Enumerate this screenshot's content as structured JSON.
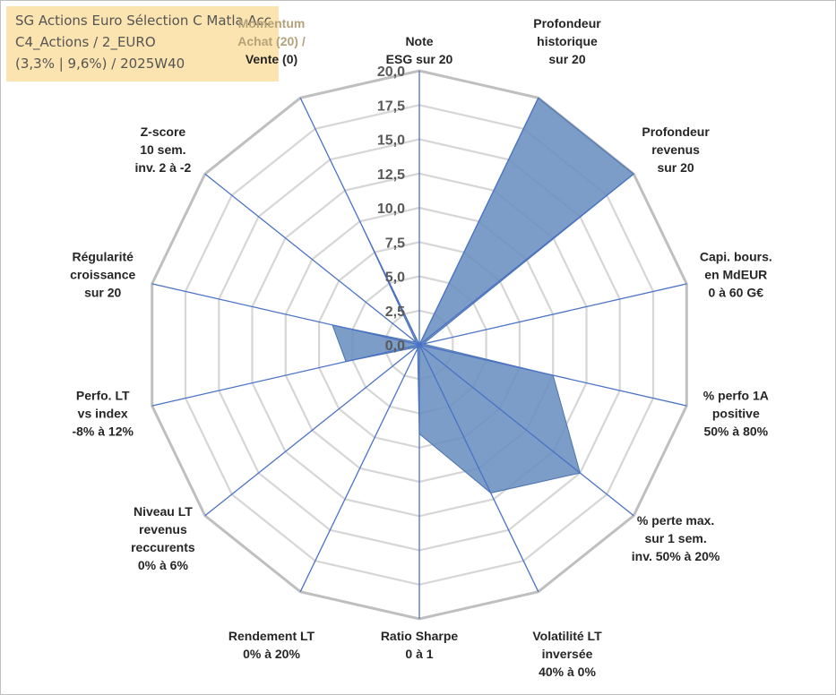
{
  "chart_data": {
    "type": "radar",
    "title_lines": [
      "SG Actions Euro Sélection C Matla Acc",
      "C4_Actions / 2_EURO",
      "(3,3% | 9,6%) / 2025W40"
    ],
    "rmin": 0,
    "rmax": 20,
    "ticks": [
      "0,0",
      "2,5",
      "5,0",
      "7,5",
      "10,0",
      "12,5",
      "15,0",
      "17,5",
      "20,0"
    ],
    "categories": [
      {
        "lines": [
          "Note",
          "ESG sur 20"
        ]
      },
      {
        "lines": [
          "Profondeur",
          "historique",
          "sur 20"
        ]
      },
      {
        "lines": [
          "Profondeur",
          "revenus",
          "sur 20"
        ]
      },
      {
        "lines": [
          "Capi. bours.",
          "en MdEUR",
          "0 à 60 G€"
        ]
      },
      {
        "lines": [
          "% perfo 1A",
          "positive",
          "50% à 80%"
        ]
      },
      {
        "lines": [
          "% perte max.",
          "sur 1 sem.",
          "inv. 50% à 20%"
        ]
      },
      {
        "lines": [
          "Volatilité LT",
          "inversée",
          "40% à 0%"
        ]
      },
      {
        "lines": [
          "Ratio Sharpe",
          "0 à 1"
        ]
      },
      {
        "lines": [
          "Rendement LT",
          "0% à 20%"
        ]
      },
      {
        "lines": [
          "Niveau LT",
          "revenus",
          "reccurents",
          "0% à 6%"
        ]
      },
      {
        "lines": [
          "Perfo. LT",
          "vs index",
          "-8% à 12%"
        ]
      },
      {
        "lines": [
          "Régularité",
          "croissance",
          "sur 20"
        ]
      },
      {
        "lines": [
          "Z-score",
          "10 sem.",
          "inv. 2 à -2"
        ]
      },
      {
        "lines": [
          "Momentum",
          "Achat (20) /",
          "Vente (0)"
        ]
      }
    ],
    "series": [
      {
        "name": "SG Actions Euro Sélection C Matla Acc",
        "color": "#6a8fbf",
        "line_color": "#4a72b0",
        "values": [
          0,
          20,
          20,
          0.3,
          10,
          15,
          12,
          6.5,
          0.3,
          0.3,
          5.5,
          6.5,
          0.3,
          9.5
        ]
      }
    ]
  }
}
